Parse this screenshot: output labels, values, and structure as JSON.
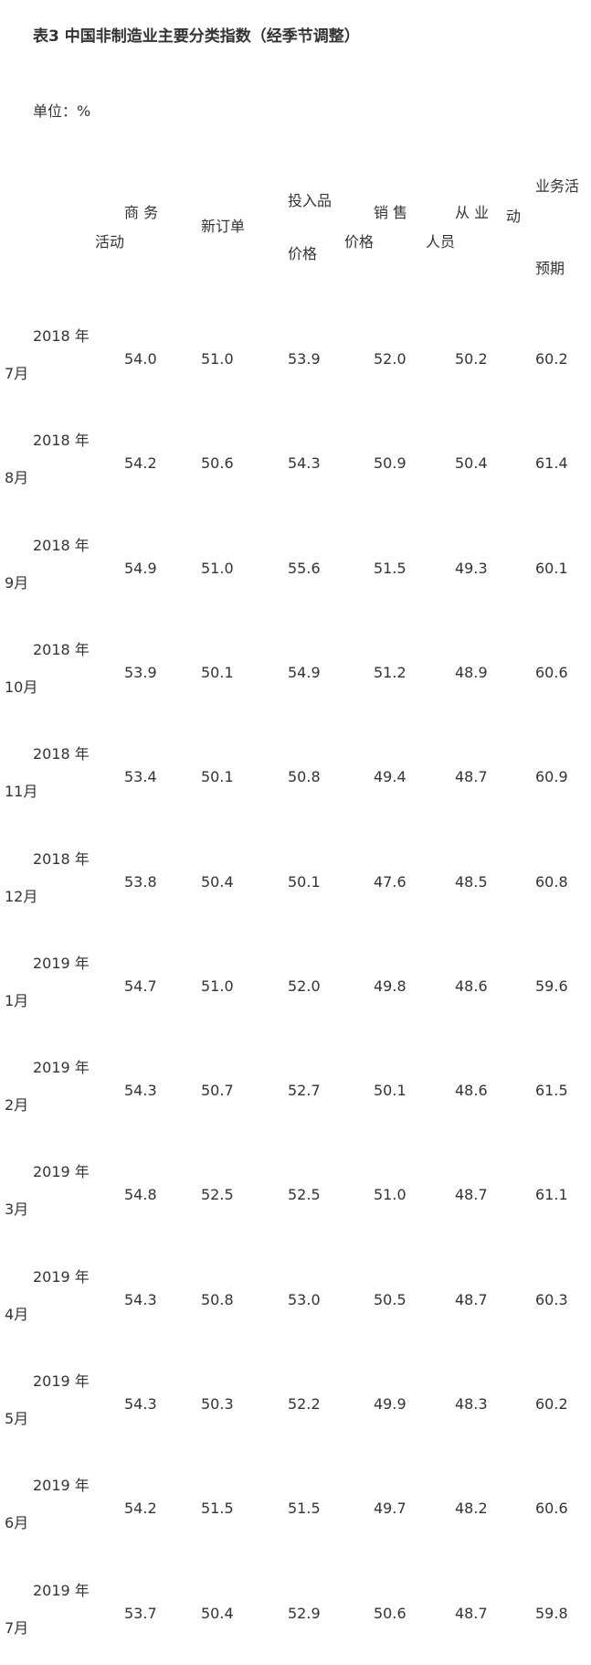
{
  "title": "表3 中国非制造业主要分类指数（经季节调整）",
  "unit": "单位：%",
  "table": {
    "header": [
      [
        "商 务",
        "活动"
      ],
      [
        "新订单"
      ],
      [
        "投入品",
        "价格"
      ],
      [
        "销 售",
        "价格"
      ],
      [
        "从 业",
        "人员"
      ],
      [
        "业务活",
        "动",
        "预期"
      ]
    ],
    "rows": [
      [
        [
          "2018 年",
          "7月"
        ],
        "54.0",
        "51.0",
        "53.9",
        "52.0",
        "50.2",
        "60.2"
      ],
      [
        [
          "2018 年",
          "8月"
        ],
        "54.2",
        "50.6",
        "54.3",
        "50.9",
        "50.4",
        "61.4"
      ],
      [
        [
          "2018 年",
          "9月"
        ],
        "54.9",
        "51.0",
        "55.6",
        "51.5",
        "49.3",
        "60.1"
      ],
      [
        [
          "2018 年",
          "10月"
        ],
        "53.9",
        "50.1",
        "54.9",
        "51.2",
        "48.9",
        "60.6"
      ],
      [
        [
          "2018 年",
          "11月"
        ],
        "53.4",
        "50.1",
        "50.8",
        "49.4",
        "48.7",
        "60.9"
      ],
      [
        [
          "2018 年",
          "12月"
        ],
        "53.8",
        "50.4",
        "50.1",
        "47.6",
        "48.5",
        "60.8"
      ],
      [
        [
          "2019 年",
          "1月"
        ],
        "54.7",
        "51.0",
        "52.0",
        "49.8",
        "48.6",
        "59.6"
      ],
      [
        [
          "2019 年",
          "2月"
        ],
        "54.3",
        "50.7",
        "52.7",
        "50.1",
        "48.6",
        "61.5"
      ],
      [
        [
          "2019 年",
          "3月"
        ],
        "54.8",
        "52.5",
        "52.5",
        "51.0",
        "48.7",
        "61.1"
      ],
      [
        [
          "2019 年",
          "4月"
        ],
        "54.3",
        "50.8",
        "53.0",
        "50.5",
        "48.7",
        "60.3"
      ],
      [
        [
          "2019 年",
          "5月"
        ],
        "54.3",
        "50.3",
        "52.2",
        "49.9",
        "48.3",
        "60.2"
      ],
      [
        [
          "2019 年",
          "6月"
        ],
        "54.2",
        "51.5",
        "51.5",
        "49.7",
        "48.2",
        "60.6"
      ],
      [
        [
          "2019 年",
          "7月"
        ],
        "53.7",
        "50.4",
        "52.9",
        "50.6",
        "48.7",
        "59.8"
      ]
    ]
  }
}
